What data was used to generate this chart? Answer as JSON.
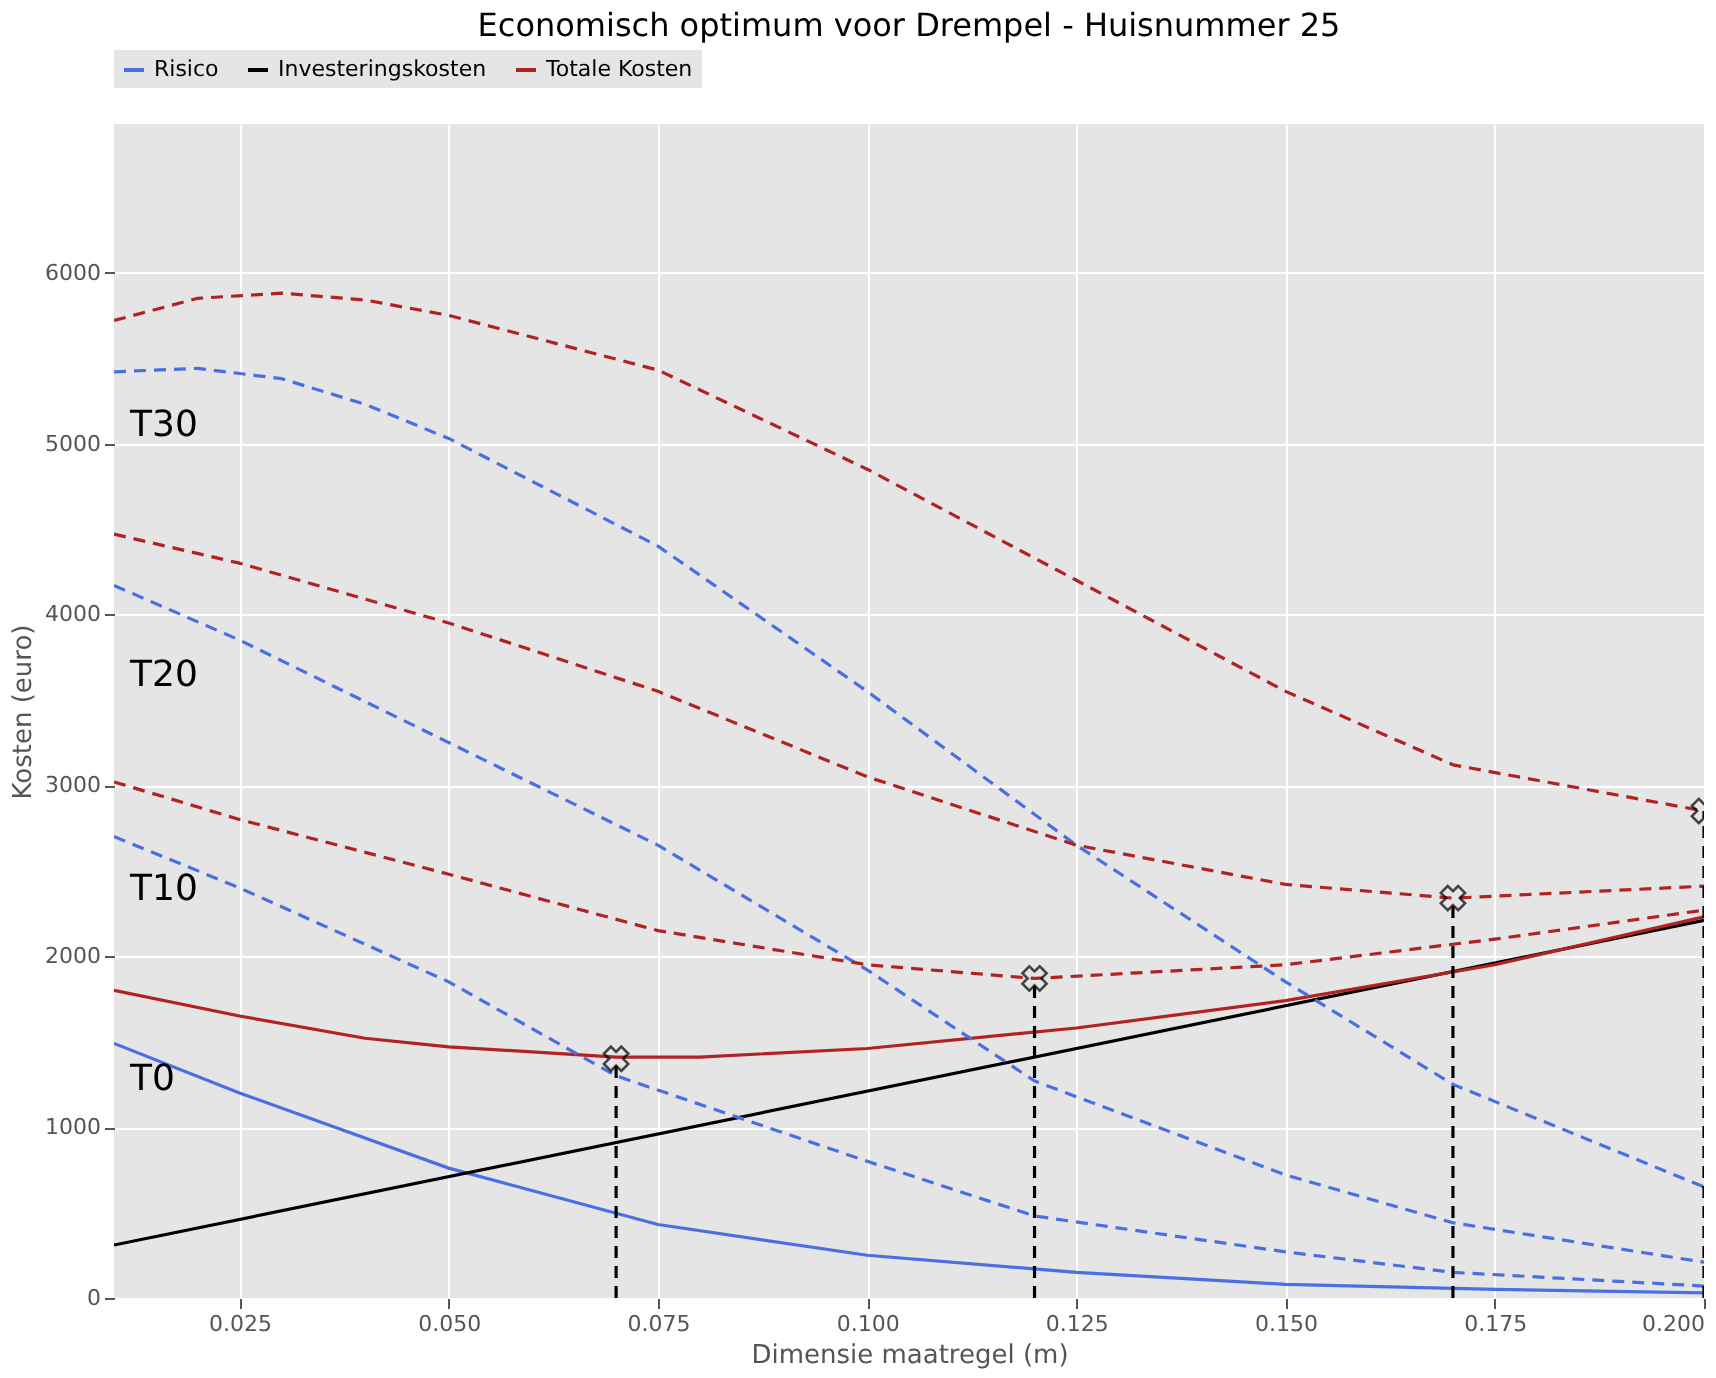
{
  "chart_data": {
    "type": "line",
    "title": "Economisch optimum voor Drempel - Huisnummer 25",
    "xlabel": "Dimensie maatregel (m)",
    "ylabel": "Kosten (euro)",
    "xlim": [
      0.01,
      0.2
    ],
    "ylim": [
      0,
      6870
    ],
    "xticks": [
      {
        "value": 0.025,
        "label": "0.025"
      },
      {
        "value": 0.05,
        "label": "0.050"
      },
      {
        "value": 0.075,
        "label": "0.075"
      },
      {
        "value": 0.1,
        "label": "0.100"
      },
      {
        "value": 0.125,
        "label": "0.125"
      },
      {
        "value": 0.15,
        "label": "0.150"
      },
      {
        "value": 0.175,
        "label": "0.175"
      },
      {
        "value": 0.2,
        "label": "0.200"
      }
    ],
    "yticks": [
      0,
      1000,
      2000,
      3000,
      4000,
      5000,
      6000
    ],
    "grid": true,
    "legend": "top",
    "series": [
      {
        "name": "Risico",
        "color": "#4a6fe3",
        "line_style": "solid",
        "x": [
          0.01,
          0.025,
          0.05,
          0.075,
          0.1,
          0.125,
          0.15,
          0.175,
          0.2
        ],
        "values": [
          1490,
          1200,
          760,
          430,
          250,
          150,
          80,
          50,
          30
        ]
      },
      {
        "name": "Investeringskosten",
        "color": "#000000",
        "line_style": "solid",
        "x": [
          0.01,
          0.2
        ],
        "values": [
          310,
          2210
        ]
      },
      {
        "name": "Totale Kosten",
        "color": "#b22222",
        "line_style": "solid",
        "x": [
          0.01,
          0.025,
          0.04,
          0.05,
          0.07,
          0.08,
          0.1,
          0.125,
          0.15,
          0.175,
          0.2
        ],
        "values": [
          1800,
          1650,
          1520,
          1470,
          1410,
          1410,
          1460,
          1580,
          1740,
          1950,
          2230
        ]
      },
      {
        "color": "#4a6fe3",
        "line_style": "dashed",
        "x": [
          0.01,
          0.025,
          0.05,
          0.07,
          0.1,
          0.12,
          0.15,
          0.17,
          0.2
        ],
        "values": [
          2700,
          2400,
          1850,
          1300,
          800,
          480,
          270,
          150,
          70
        ]
      },
      {
        "color": "#4a6fe3",
        "line_style": "dashed",
        "x": [
          0.01,
          0.025,
          0.05,
          0.075,
          0.1,
          0.12,
          0.15,
          0.17,
          0.2
        ],
        "values": [
          4170,
          3850,
          3250,
          2650,
          1920,
          1270,
          720,
          440,
          210
        ]
      },
      {
        "color": "#4a6fe3",
        "line_style": "dashed",
        "x": [
          0.01,
          0.02,
          0.03,
          0.04,
          0.05,
          0.075,
          0.1,
          0.125,
          0.15,
          0.17,
          0.2
        ],
        "values": [
          5420,
          5440,
          5380,
          5230,
          5030,
          4400,
          3550,
          2650,
          1850,
          1250,
          650
        ]
      },
      {
        "color": "#b22222",
        "line_style": "dashed",
        "x": [
          0.01,
          0.025,
          0.05,
          0.075,
          0.1,
          0.12,
          0.15,
          0.175,
          0.2
        ],
        "values": [
          3020,
          2800,
          2480,
          2150,
          1950,
          1870,
          1950,
          2100,
          2270
        ]
      },
      {
        "color": "#b22222",
        "line_style": "dashed",
        "x": [
          0.01,
          0.025,
          0.05,
          0.075,
          0.1,
          0.125,
          0.15,
          0.17,
          0.2
        ],
        "values": [
          4470,
          4300,
          3950,
          3550,
          3050,
          2650,
          2420,
          2340,
          2410
        ]
      },
      {
        "color": "#b22222",
        "line_style": "dashed",
        "x": [
          0.01,
          0.02,
          0.03,
          0.04,
          0.05,
          0.075,
          0.1,
          0.125,
          0.15,
          0.17,
          0.2
        ],
        "values": [
          5720,
          5850,
          5880,
          5840,
          5750,
          5430,
          4850,
          4200,
          3550,
          3120,
          2850
        ]
      },
      {
        "color": "#000000",
        "line_style": "dashed",
        "x": [
          0.07,
          0.07
        ],
        "values": [
          0,
          1400
        ]
      },
      {
        "color": "#000000",
        "line_style": "dashed",
        "x": [
          0.12,
          0.12
        ],
        "values": [
          0,
          1870
        ]
      },
      {
        "color": "#000000",
        "line_style": "dashed",
        "x": [
          0.17,
          0.17
        ],
        "values": [
          0,
          2340
        ]
      },
      {
        "color": "#000000",
        "line_style": "dashed",
        "x": [
          0.2,
          0.2
        ],
        "values": [
          0,
          2850
        ]
      },
      {
        "type": "scatter",
        "marker": "cross",
        "color": "#000000",
        "x": [
          0.07,
          0.12,
          0.17,
          0.2
        ],
        "values": [
          1400,
          1870,
          2340,
          2850
        ]
      }
    ],
    "annotations": [
      "T0",
      "T10",
      "T20",
      "T30"
    ]
  }
}
